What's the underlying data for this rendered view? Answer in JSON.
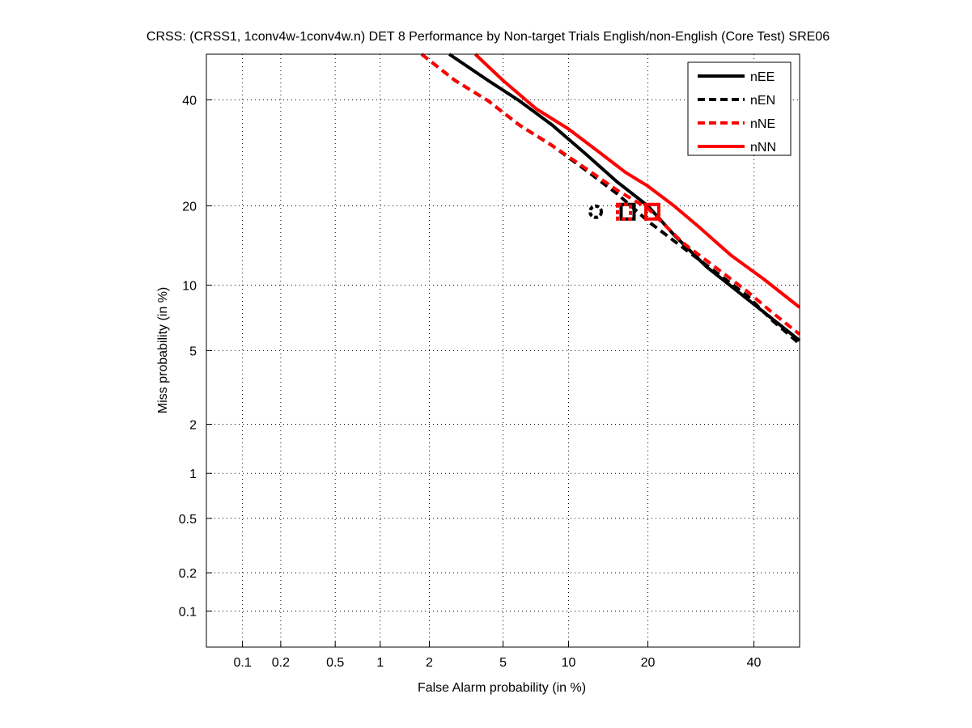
{
  "chart_data": {
    "type": "line",
    "title": "CRSS: (CRSS1, 1conv4w-1conv4w.n) DET 8 Performance by Non-target Trials English/non-English (Core Test) SRE06",
    "xlabel": "False Alarm probability (in %)",
    "ylabel": "Miss probability (in %)",
    "xscale": "probit",
    "yscale": "probit",
    "xlim": [
      0.05,
      50
    ],
    "ylim": [
      0.05,
      50
    ],
    "xticks": [
      0.1,
      0.2,
      0.5,
      1,
      2,
      5,
      10,
      20,
      40
    ],
    "xtick_labels": [
      "0.1",
      "0.2",
      "0.5",
      "1",
      "2",
      "5",
      "10",
      "20",
      "40"
    ],
    "yticks": [
      0.1,
      0.2,
      0.5,
      1,
      2,
      5,
      10,
      20,
      40
    ],
    "ytick_labels": [
      "0.1",
      "0.2",
      "0.5",
      "1",
      "2",
      "5",
      "10",
      "20",
      "40"
    ],
    "grid": true,
    "legend_position": "top-right",
    "series": [
      {
        "name": "nEE",
        "color": "#000000",
        "dash": false,
        "x": [
          2.6,
          4.2,
          6.0,
          8.5,
          11.7,
          15.6,
          20,
          24.3,
          30.3,
          38.6,
          50
        ],
        "y": [
          50,
          44.2,
          39.8,
          34.7,
          29.1,
          23.9,
          20,
          15.8,
          11.9,
          8.7,
          5.6
        ],
        "marker": {
          "x": 17,
          "y": 19.1,
          "shape": "square"
        }
      },
      {
        "name": "nEN",
        "color": "#000000",
        "dash": true,
        "x": [
          1.8,
          2.8,
          4.2,
          6.0,
          8.5,
          11.7,
          15.6,
          20.3,
          25.8,
          31.9,
          38.6,
          43.9,
          50
        ],
        "y": [
          50,
          44.2,
          39.8,
          34.7,
          30.6,
          26.1,
          21.9,
          17.5,
          14.2,
          11.4,
          9.0,
          7.0,
          5.4
        ],
        "marker": {
          "x": 12.9,
          "y": 19.1,
          "shape": "circle"
        }
      },
      {
        "name": "nNE",
        "color": "#ff0000",
        "dash": true,
        "x": [
          1.8,
          2.8,
          4.2,
          6.0,
          8.5,
          11.7,
          15.6,
          20,
          25.8,
          31.9,
          38.6,
          43.9,
          50
        ],
        "y": [
          50,
          44.2,
          39.8,
          34.7,
          30.6,
          26.4,
          22.5,
          19.6,
          14.8,
          11.9,
          9.4,
          7.6,
          6.0
        ],
        "marker": {
          "x": 16.5,
          "y": 19.1,
          "shape": "square"
        }
      },
      {
        "name": "nNN",
        "color": "#ff0000",
        "dash": false,
        "x": [
          3.6,
          5.0,
          7.2,
          10,
          13.5,
          16.7,
          20,
          24.3,
          28.8,
          35.2,
          42.1,
          50
        ],
        "y": [
          50,
          44.2,
          38.1,
          33.9,
          29.1,
          25.6,
          23.2,
          20,
          16.9,
          13.2,
          10.6,
          8.0
        ],
        "marker": {
          "x": 20.7,
          "y": 19.1,
          "shape": "square"
        }
      }
    ]
  }
}
